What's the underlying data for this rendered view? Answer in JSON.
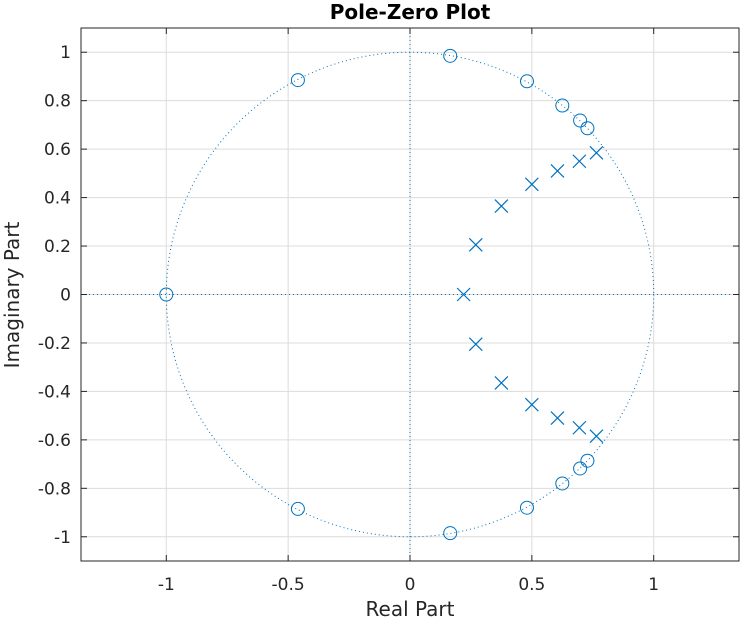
{
  "chart_data": {
    "type": "scatter",
    "title": "Pole-Zero Plot",
    "xlabel": "Real Part",
    "ylabel": "Imaginary Part",
    "xlim": [
      -1.35,
      1.35
    ],
    "ylim": [
      -1.1,
      1.1
    ],
    "xticks": [
      -1,
      -0.5,
      0,
      0.5,
      1
    ],
    "xtick_labels": [
      "-1",
      "-0.5",
      "0",
      "0.5",
      "1"
    ],
    "yticks": [
      1,
      0.8,
      0.6,
      0.4,
      0.2,
      0,
      -0.2,
      -0.4,
      -0.6,
      -0.8,
      -1
    ],
    "ytick_labels": [
      "1",
      "0.8",
      "0.6",
      "0.4",
      "0.2",
      "0",
      "-0.2",
      "-0.4",
      "-0.6",
      "-0.8",
      "-1"
    ],
    "grid": true,
    "unit_circle": true,
    "colors": {
      "marker": "#0072BD",
      "grid": "#dcdcdc",
      "axes": "#262626"
    },
    "series": [
      {
        "marker": "o",
        "points": [
          [
            -1.0,
            0.0
          ],
          [
            -0.46,
            0.885
          ],
          [
            -0.46,
            -0.885
          ],
          [
            0.165,
            0.985
          ],
          [
            0.165,
            -0.985
          ],
          [
            0.48,
            0.88
          ],
          [
            0.48,
            -0.88
          ],
          [
            0.625,
            0.78
          ],
          [
            0.625,
            -0.78
          ],
          [
            0.698,
            0.718
          ],
          [
            0.698,
            -0.718
          ],
          [
            0.728,
            0.686
          ],
          [
            0.728,
            -0.686
          ]
        ]
      },
      {
        "marker": "x",
        "points": [
          [
            0.22,
            0.0
          ],
          [
            0.27,
            0.205
          ],
          [
            0.27,
            -0.205
          ],
          [
            0.375,
            0.365
          ],
          [
            0.375,
            -0.365
          ],
          [
            0.5,
            0.455
          ],
          [
            0.5,
            -0.455
          ],
          [
            0.605,
            0.51
          ],
          [
            0.605,
            -0.51
          ],
          [
            0.695,
            0.55
          ],
          [
            0.695,
            -0.55
          ],
          [
            0.765,
            0.585
          ],
          [
            0.765,
            -0.585
          ]
        ]
      }
    ]
  }
}
